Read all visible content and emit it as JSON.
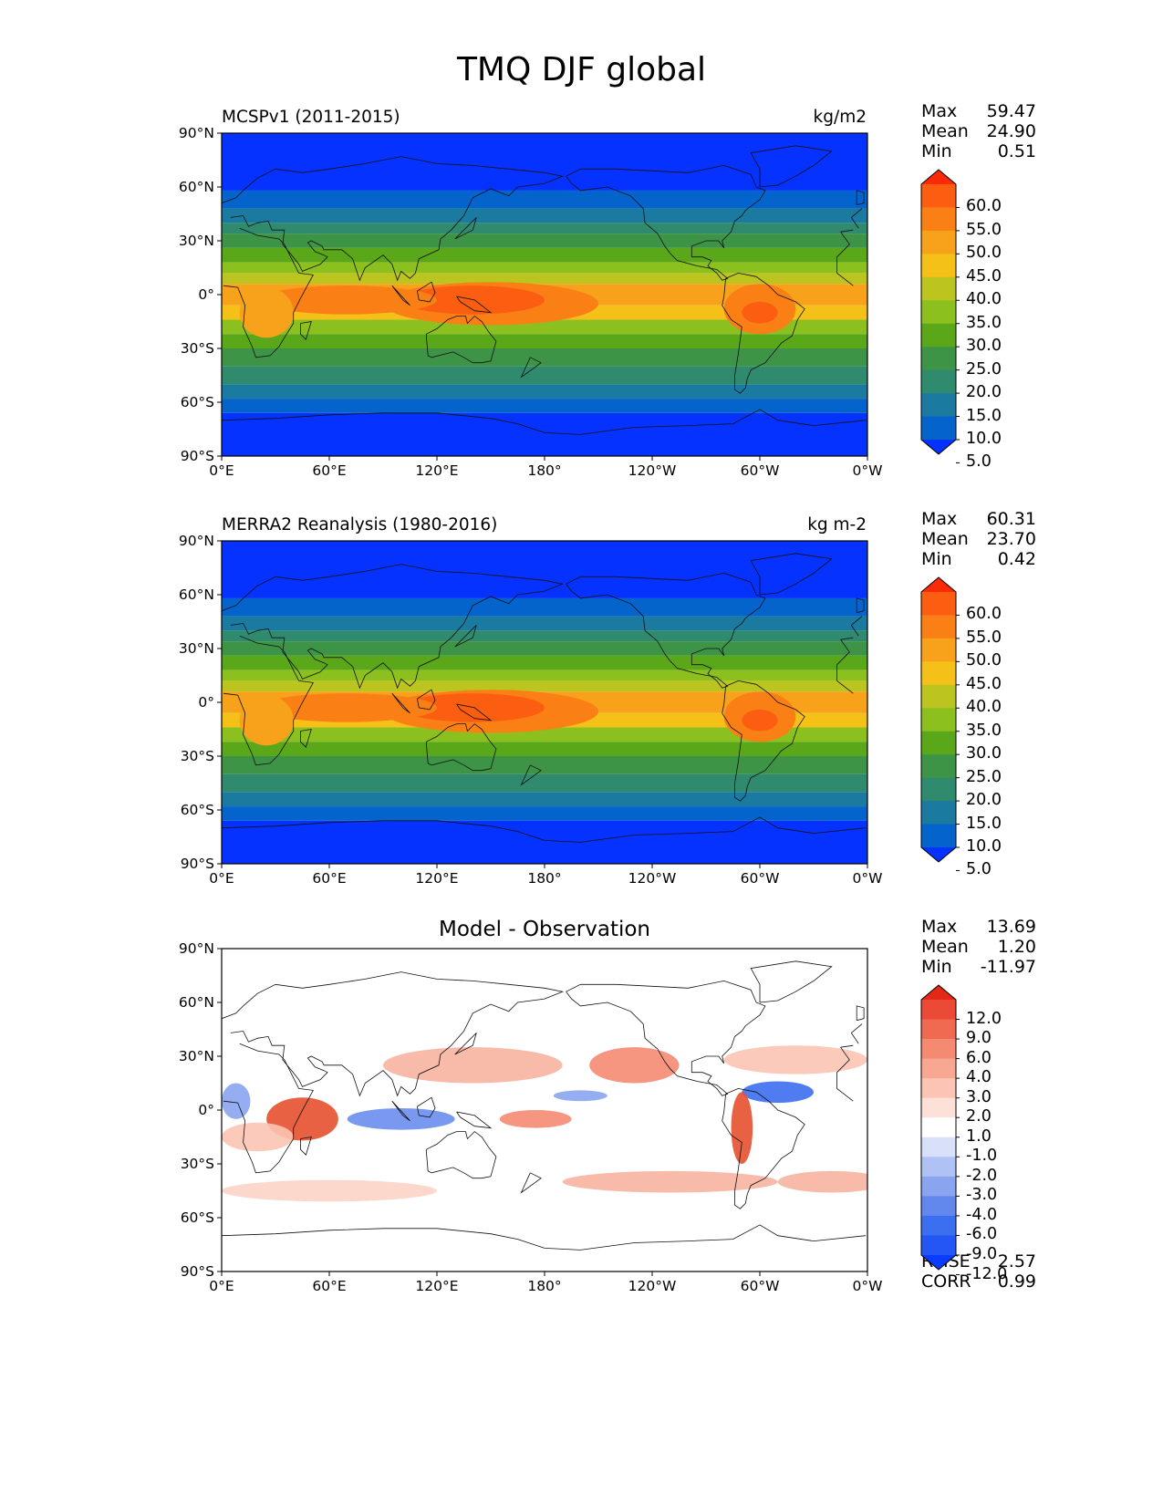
{
  "title": "TMQ DJF global",
  "axes": {
    "lat_ticks": [
      "90°N",
      "60°N",
      "30°N",
      "0°",
      "30°S",
      "60°S",
      "90°S"
    ],
    "lon_ticks": [
      "0°E",
      "60°E",
      "120°E",
      "180°",
      "120°W",
      "60°W",
      "0°W"
    ]
  },
  "panels": [
    {
      "left_title": "MCSPv1 (2011-2015)",
      "right_title": "kg/m2",
      "center_title": "",
      "stats": [
        {
          "label": "Max",
          "value": "59.47"
        },
        {
          "label": "Mean",
          "value": "24.90"
        },
        {
          "label": "Min",
          "value": "0.51"
        }
      ],
      "colorbar": {
        "labels": [
          "60.0",
          "55.0",
          "50.0",
          "45.0",
          "40.0",
          "35.0",
          "30.0",
          "25.0",
          "20.0",
          "15.0",
          "10.0",
          "5.0"
        ],
        "colors": [
          "#0532ff",
          "#0464cc",
          "#1a7aa0",
          "#2f8a6e",
          "#3d9446",
          "#5aa81a",
          "#8cc01e",
          "#bcc420",
          "#f5c018",
          "#f7a21a",
          "#fa8016",
          "#fb5e10",
          "#fd2a08"
        ]
      }
    },
    {
      "left_title": "MERRA2 Reanalysis (1980-2016)",
      "right_title": "kg m-2",
      "center_title": "",
      "stats": [
        {
          "label": "Max",
          "value": "60.31"
        },
        {
          "label": "Mean",
          "value": "23.70"
        },
        {
          "label": "Min",
          "value": "0.42"
        }
      ],
      "colorbar": {
        "labels": [
          "60.0",
          "55.0",
          "50.0",
          "45.0",
          "40.0",
          "35.0",
          "30.0",
          "25.0",
          "20.0",
          "15.0",
          "10.0",
          "5.0"
        ],
        "colors": [
          "#0532ff",
          "#0464cc",
          "#1a7aa0",
          "#2f8a6e",
          "#3d9446",
          "#5aa81a",
          "#8cc01e",
          "#bcc420",
          "#f5c018",
          "#f7a21a",
          "#fa8016",
          "#fb5e10",
          "#fd2a08"
        ]
      }
    },
    {
      "left_title": "",
      "right_title": "",
      "center_title": "Model - Observation",
      "stats": [
        {
          "label": "Max",
          "value": "13.69"
        },
        {
          "label": "Mean",
          "value": "1.20"
        },
        {
          "label": "Min",
          "value": "-11.97"
        }
      ],
      "extra_stats": [
        {
          "label": "RMSE",
          "value": "2.57"
        },
        {
          "label": "CORR",
          "value": "0.99"
        }
      ],
      "colorbar": {
        "labels": [
          "12.0",
          "9.0",
          "6.0",
          "4.0",
          "3.0",
          "2.0",
          "1.0",
          "-1.0",
          "-2.0",
          "-3.0",
          "-4.0",
          "-6.0",
          "-9.0",
          "-12.0"
        ],
        "colors": [
          "#0a3cff",
          "#2456f5",
          "#3c6ef0",
          "#6288ee",
          "#8aa4f0",
          "#b0c2f5",
          "#d8e0fa",
          "#ffffff",
          "#fde0d8",
          "#fbc4b4",
          "#f8a892",
          "#f58a72",
          "#f06a52",
          "#ea4a36",
          "#e42818"
        ]
      }
    }
  ]
}
